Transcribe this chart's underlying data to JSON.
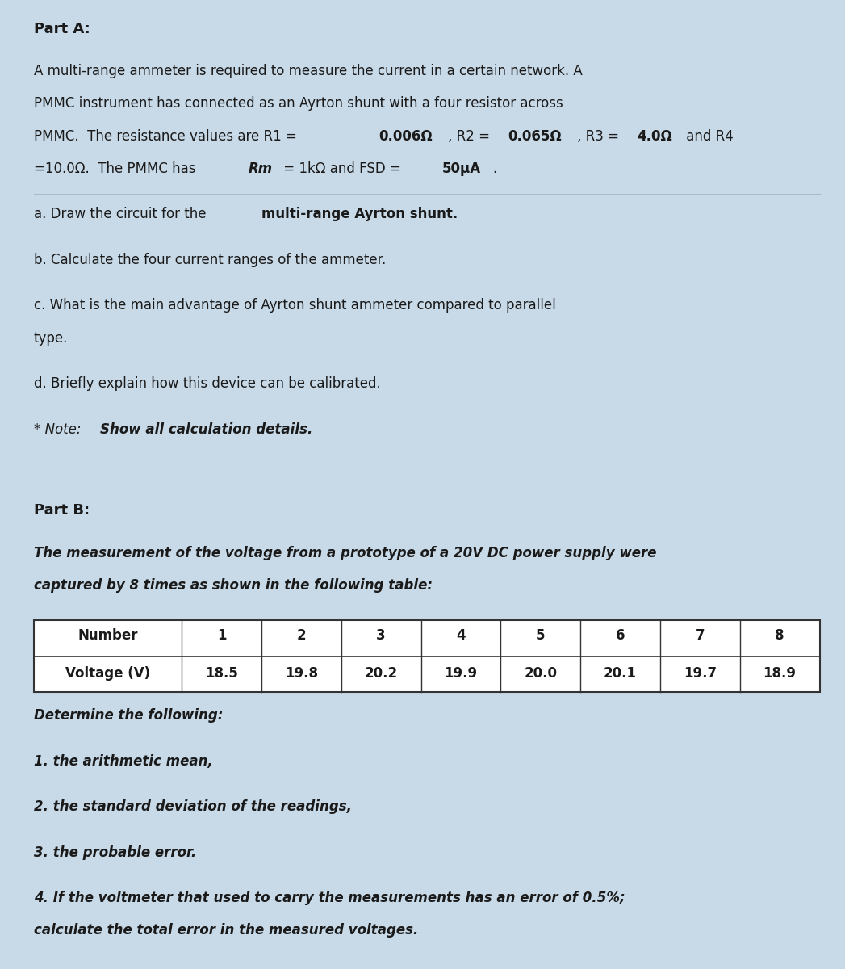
{
  "bg_color": "#c8dae8",
  "text_color": "#1a1a1a",
  "fig_width": 10.47,
  "fig_height": 12.0,
  "part_a_header": "Part A:",
  "part_b_header": "Part B:",
  "font_size_header": 13,
  "font_size_body": 12,
  "table_headers": [
    "Number",
    "1",
    "2",
    "3",
    "4",
    "5",
    "6",
    "7",
    "8"
  ],
  "table_row2_data": [
    "Voltage (V)",
    "18.5",
    "19.8",
    "20.2",
    "19.9",
    "20.0",
    "20.1",
    "19.7",
    "18.9"
  ]
}
